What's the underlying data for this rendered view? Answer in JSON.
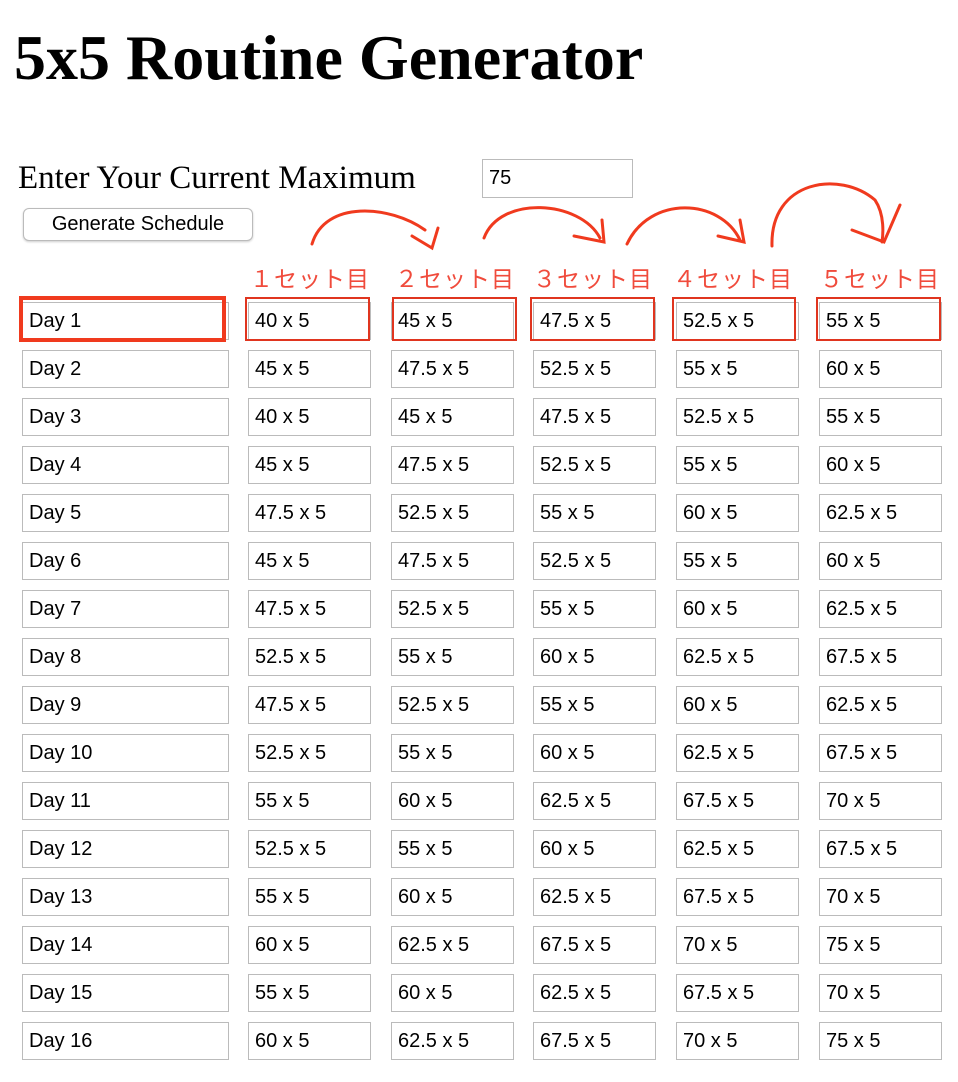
{
  "header": {
    "title": "5x5 Routine Generator"
  },
  "form": {
    "label": "Enter Your Current Maximum",
    "input_value": "75",
    "button": "Generate Schedule"
  },
  "annotations": [
    "１セット目",
    "２セット目",
    "３セット目",
    "４セット目",
    "５セット目"
  ],
  "table": {
    "rows": [
      [
        "Day 1",
        "40 x 5",
        "45 x 5",
        "47.5 x 5",
        "52.5 x 5",
        "55 x 5"
      ],
      [
        "Day 2",
        "45 x 5",
        "47.5 x 5",
        "52.5 x 5",
        "55 x 5",
        "60 x 5"
      ],
      [
        "Day 3",
        "40 x 5",
        "45 x 5",
        "47.5 x 5",
        "52.5 x 5",
        "55 x 5"
      ],
      [
        "Day 4",
        "45 x 5",
        "47.5 x 5",
        "52.5 x 5",
        "55 x 5",
        "60 x 5"
      ],
      [
        "Day 5",
        "47.5 x 5",
        "52.5 x 5",
        "55 x 5",
        "60 x 5",
        "62.5 x 5"
      ],
      [
        "Day 6",
        "45 x 5",
        "47.5 x 5",
        "52.5 x 5",
        "55 x 5",
        "60 x 5"
      ],
      [
        "Day 7",
        "47.5 x 5",
        "52.5 x 5",
        "55 x 5",
        "60 x 5",
        "62.5 x 5"
      ],
      [
        "Day 8",
        "52.5 x 5",
        "55 x 5",
        "60 x 5",
        "62.5 x 5",
        "67.5 x 5"
      ],
      [
        "Day 9",
        "47.5 x 5",
        "52.5 x 5",
        "55 x 5",
        "60 x 5",
        "62.5 x 5"
      ],
      [
        "Day 10",
        "52.5 x 5",
        "55 x 5",
        "60 x 5",
        "62.5 x 5",
        "67.5 x 5"
      ],
      [
        "Day 11",
        "55 x 5",
        "60 x 5",
        "62.5 x 5",
        "67.5 x 5",
        "70 x 5"
      ],
      [
        "Day 12",
        "52.5 x 5",
        "55 x 5",
        "60 x 5",
        "62.5 x 5",
        "67.5 x 5"
      ],
      [
        "Day 13",
        "55 x 5",
        "60 x 5",
        "62.5 x 5",
        "67.5 x 5",
        "70 x 5"
      ],
      [
        "Day 14",
        "60 x 5",
        "62.5 x 5",
        "67.5 x 5",
        "70 x 5",
        "75 x 5"
      ],
      [
        "Day 15",
        "55 x 5",
        "60 x 5",
        "62.5 x 5",
        "67.5 x 5",
        "70 x 5"
      ],
      [
        "Day 16",
        "60 x 5",
        "62.5 x 5",
        "67.5 x 5",
        "70 x 5",
        "75 x 5"
      ]
    ]
  }
}
